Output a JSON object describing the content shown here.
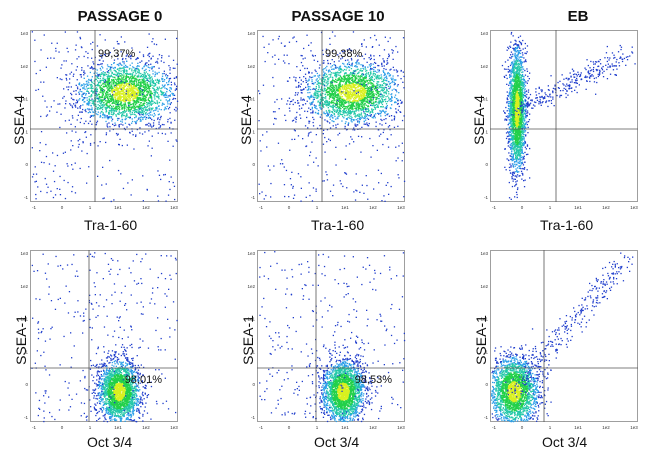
{
  "chart_data": [
    {
      "type": "scatter",
      "title": "PASSAGE 0",
      "xlabel": "Tra-1-60",
      "ylabel": "SSEA-4",
      "gate_label": "99,37%",
      "gate_quadrant": "top-right",
      "x_ticks": [
        "-1",
        "0",
        "1",
        "1e1",
        "1e2",
        "1e3"
      ],
      "y_ticks": [
        "1e3",
        "1e2",
        "1e1",
        "1",
        "0",
        "-1"
      ],
      "population": {
        "center_x": 0.64,
        "center_y": 0.36,
        "spread_x": 0.16,
        "spread_y": 0.09
      }
    },
    {
      "type": "scatter",
      "title": "PASSAGE 10",
      "xlabel": "Tra-1-60",
      "ylabel": "SSEA-4",
      "gate_label": "99,38%",
      "gate_quadrant": "top-right",
      "x_ticks": [
        "-1",
        "0",
        "1",
        "1e1",
        "1e2",
        "1e3"
      ],
      "y_ticks": [
        "1e3",
        "1e2",
        "1e1",
        "1",
        "0",
        "-1"
      ],
      "population": {
        "center_x": 0.64,
        "center_y": 0.36,
        "spread_x": 0.16,
        "spread_y": 0.09
      }
    },
    {
      "type": "scatter",
      "title": "EB",
      "xlabel": "Tra-1-60",
      "ylabel": "SSEA-4",
      "gate_label": "",
      "x_ticks": [
        "-1",
        "0",
        "1",
        "1e1",
        "1e2",
        "1e3"
      ],
      "y_ticks": [
        "1e3",
        "1e2",
        "1e1",
        "1",
        "0",
        "-1"
      ],
      "population": {
        "center_x": 0.18,
        "center_y": 0.46,
        "spread_x": 0.03,
        "spread_y": 0.18
      }
    },
    {
      "type": "scatter",
      "title": "",
      "xlabel": "Oct 3/4",
      "ylabel": "SSEA-1",
      "gate_label": "98,01%",
      "gate_quadrant": "bottom-right",
      "x_ticks": [
        "-1",
        "0",
        "1",
        "1e1",
        "1e2",
        "1e3"
      ],
      "y_ticks": [
        "1e3",
        "1e2",
        "1e1",
        "1",
        "0",
        "-1"
      ],
      "population": {
        "center_x": 0.6,
        "center_y": 0.82,
        "spread_x": 0.07,
        "spread_y": 0.09
      }
    },
    {
      "type": "scatter",
      "title": "",
      "xlabel": "Oct 3/4",
      "ylabel": "SSEA-1",
      "gate_label": "98,53%",
      "gate_quadrant": "bottom-right",
      "x_ticks": [
        "-1",
        "0",
        "1",
        "1e1",
        "1e2",
        "1e3"
      ],
      "y_ticks": [
        "1e3",
        "1e2",
        "1e1",
        "1",
        "0",
        "-1"
      ],
      "population": {
        "center_x": 0.58,
        "center_y": 0.82,
        "spread_x": 0.07,
        "spread_y": 0.09
      }
    },
    {
      "type": "scatter",
      "title": "",
      "xlabel": "Oct 3/4",
      "ylabel": "SSEA-1",
      "gate_label": "",
      "x_ticks": [
        "-1",
        "0",
        "1",
        "1e1",
        "1e2",
        "1e3"
      ],
      "y_ticks": [
        "1e3",
        "1e2",
        "1e1",
        "1",
        "0",
        "-1"
      ],
      "population": {
        "center_x": 0.16,
        "center_y": 0.82,
        "spread_x": 0.08,
        "spread_y": 0.1
      }
    }
  ],
  "colors": {
    "sparse": "#1f3dcc",
    "mid": "#2a9ee8",
    "dense": "#22d04a",
    "core": "#d8f020",
    "gate": "#555555"
  }
}
